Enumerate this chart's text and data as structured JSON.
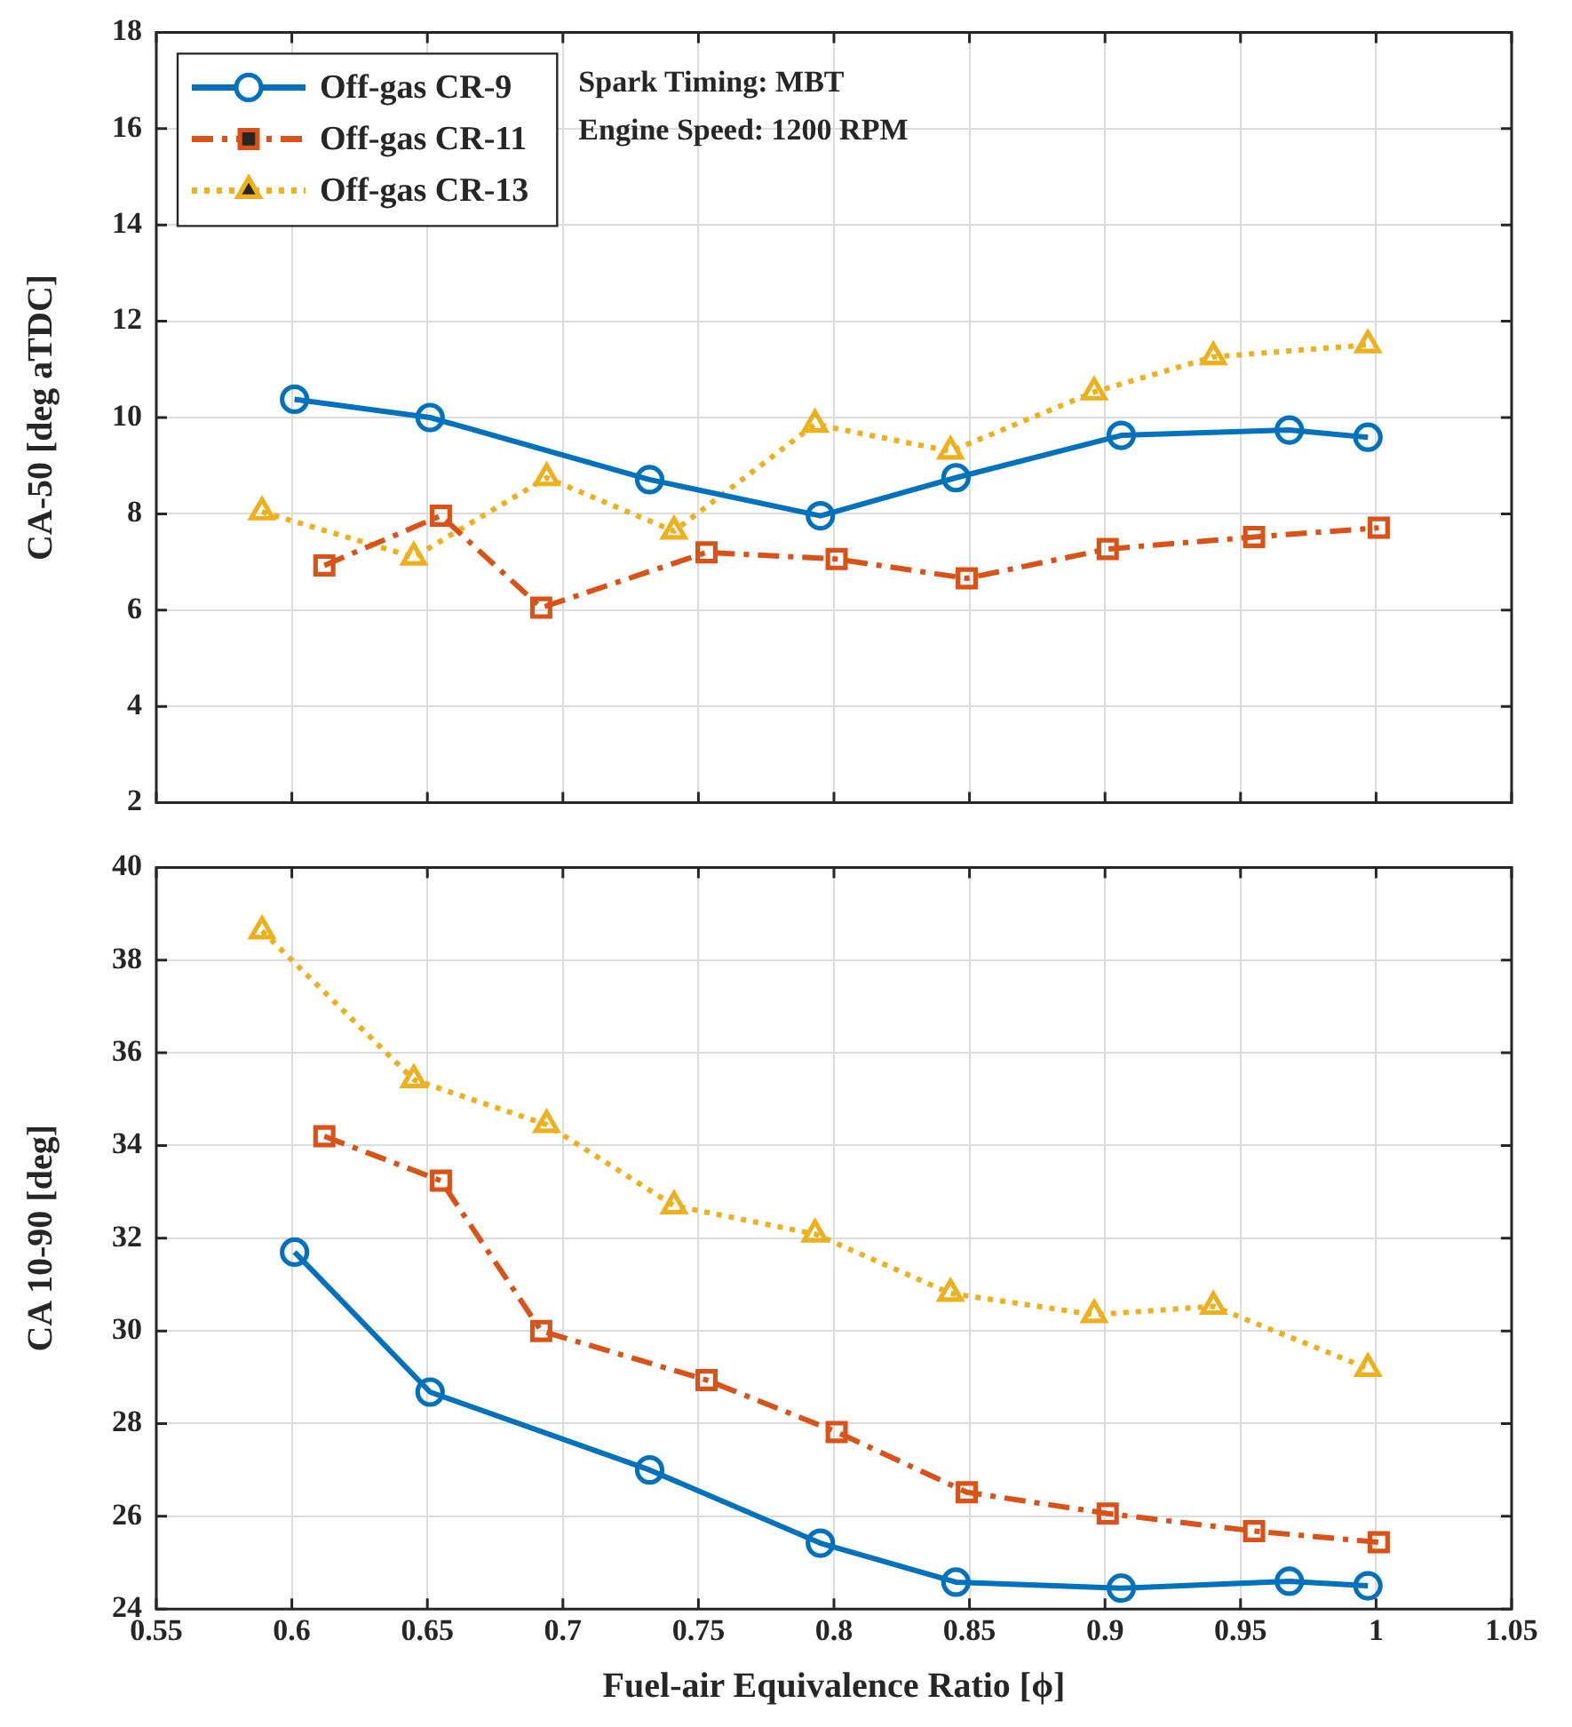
{
  "chart_data": [
    {
      "type": "line",
      "ylabel": "CA-50 [deg aTDC]",
      "annotations": [
        "Spark Timing: MBT",
        "Engine Speed: 1200 RPM"
      ],
      "xlim": [
        0.55,
        1.05
      ],
      "xticks": [
        0.55,
        0.6,
        0.65,
        0.7,
        0.75,
        0.8,
        0.85,
        0.9,
        0.95,
        1,
        1.05
      ],
      "ylim": [
        2,
        18
      ],
      "yticks": [
        2,
        4,
        6,
        8,
        10,
        12,
        14,
        16,
        18
      ],
      "grid": true,
      "legend": "top left",
      "tick_labels": "y",
      "series": [
        {
          "name": "Off-gas CR-9",
          "color": "#0072bd",
          "marker": "circle",
          "line_style": "solid",
          "x": [
            0.601,
            0.651,
            0.732,
            0.795,
            0.845,
            0.906,
            0.968,
            0.997
          ],
          "values": [
            10.38,
            10.0,
            8.71,
            7.96,
            8.75,
            9.63,
            9.74,
            9.59
          ]
        },
        {
          "name": "Off-gas CR-11",
          "color": "#d95319",
          "marker": "square",
          "line_style": "dashed",
          "x": [
            0.612,
            0.655,
            0.692,
            0.753,
            0.801,
            0.849,
            0.901,
            0.955,
            1.001
          ],
          "values": [
            6.93,
            7.96,
            6.05,
            7.2,
            7.06,
            6.66,
            7.27,
            7.52,
            7.71
          ]
        },
        {
          "name": "Off-gas CR-13",
          "color": "#edb120",
          "marker": "triangle",
          "line_style": "dotted",
          "x": [
            0.589,
            0.645,
            0.694,
            0.741,
            0.793,
            0.843,
            0.896,
            0.94,
            0.997
          ],
          "values": [
            8.04,
            7.1,
            8.75,
            7.64,
            9.86,
            9.3,
            10.53,
            11.26,
            11.51
          ]
        }
      ]
    },
    {
      "type": "line",
      "xlabel": "Fuel-air Equivalence Ratio [ϕ]",
      "ylabel": "CA 10-90 [deg]",
      "xlim": [
        0.55,
        1.05
      ],
      "xticks": [
        0.55,
        0.6,
        0.65,
        0.7,
        0.75,
        0.8,
        0.85,
        0.9,
        0.95,
        1,
        1.05
      ],
      "ylim": [
        24,
        40
      ],
      "yticks": [
        24,
        26,
        28,
        30,
        32,
        34,
        36,
        38,
        40
      ],
      "grid": true,
      "series": [
        {
          "color": "#0072bd",
          "marker": "circle",
          "line_style": "solid",
          "x": [
            0.601,
            0.651,
            0.732,
            0.795,
            0.845,
            0.906,
            0.968,
            0.997
          ],
          "values": [
            31.7,
            28.68,
            27.0,
            25.42,
            24.58,
            24.45,
            24.6,
            24.5
          ]
        },
        {
          "color": "#d95319",
          "marker": "square",
          "line_style": "dashed",
          "x": [
            0.612,
            0.655,
            0.692,
            0.753,
            0.801,
            0.849,
            0.901,
            0.955,
            1.001
          ],
          "values": [
            34.2,
            33.24,
            30.0,
            28.94,
            27.82,
            26.52,
            26.06,
            25.68,
            25.44
          ]
        },
        {
          "color": "#edb120",
          "marker": "triangle",
          "line_style": "dotted",
          "x": [
            0.589,
            0.645,
            0.694,
            0.741,
            0.793,
            0.843,
            0.896,
            0.94,
            0.997
          ],
          "values": [
            38.63,
            35.42,
            34.45,
            32.7,
            32.09,
            30.81,
            30.35,
            30.53,
            29.19
          ]
        }
      ]
    }
  ]
}
